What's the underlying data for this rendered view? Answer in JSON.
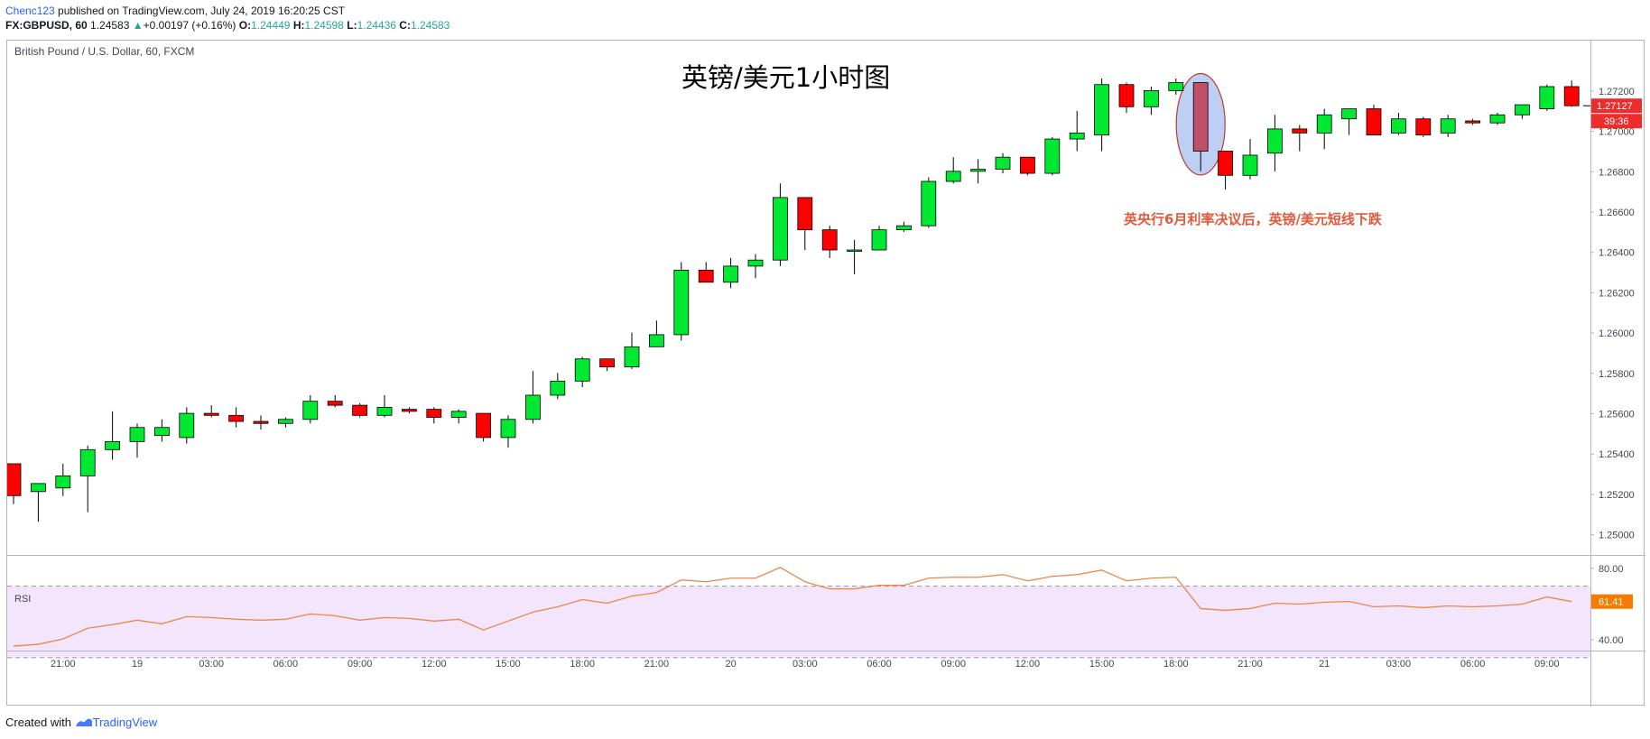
{
  "header": {
    "author": "Chenc123",
    "published": " published on TradingView.com, July 24, 2019 16:20:25 CST",
    "symbol": "FX:GBPUSD, 60",
    "last": "1.24583",
    "change_arrow": "▲",
    "change": "+0.00197 (+0.16%)",
    "o_label": "O:",
    "o_val": "1.24449",
    "h_label": "H:",
    "h_val": "1.24598",
    "l_label": "L:",
    "l_val": "1.24436",
    "c_label": "C:",
    "c_val": "1.24583"
  },
  "footer": {
    "created_with": "Created with",
    "brand": "TradingView"
  },
  "colors": {
    "up": "#00e832",
    "down": "#ff0000",
    "rsi_line": "#e8894a",
    "rsi_band": "#f3e5fb",
    "highlight": "#a7bfee",
    "annotation": "#e05a3b",
    "price_tag": "#ef2c2c",
    "rsi_tag": "#f57c00"
  },
  "chart_data": {
    "type": "candlestick",
    "instrument_label": "British Pound / U.S. Dollar, 60, FXCM",
    "title": "英镑/美元1小时图",
    "annotation": "英央行6月利率决议后，英镑/美元短线下跌",
    "price_axis": {
      "ylim": [
        1.249,
        1.2745
      ],
      "ticks": [
        "1.25000",
        "1.25200",
        "1.25400",
        "1.25600",
        "1.25800",
        "1.26000",
        "1.26200",
        "1.26400",
        "1.26600",
        "1.26800",
        "1.27000",
        "1.27200"
      ]
    },
    "last_price_tag": "1.27127",
    "countdown_tag": "39:36",
    "x_ticks": [
      {
        "i": 2,
        "label": "21:00"
      },
      {
        "i": 5,
        "label": "19"
      },
      {
        "i": 8,
        "label": "03:00"
      },
      {
        "i": 11,
        "label": "06:00"
      },
      {
        "i": 14,
        "label": "09:00"
      },
      {
        "i": 17,
        "label": "12:00"
      },
      {
        "i": 20,
        "label": "15:00"
      },
      {
        "i": 23,
        "label": "18:00"
      },
      {
        "i": 26,
        "label": "21:00"
      },
      {
        "i": 29,
        "label": "20"
      },
      {
        "i": 32,
        "label": "03:00"
      },
      {
        "i": 35,
        "label": "06:00"
      },
      {
        "i": 38,
        "label": "09:00"
      },
      {
        "i": 41,
        "label": "12:00"
      },
      {
        "i": 44,
        "label": "15:00"
      },
      {
        "i": 47,
        "label": "18:00"
      },
      {
        "i": 50,
        "label": "21:00"
      },
      {
        "i": 53,
        "label": "21"
      },
      {
        "i": 56,
        "label": "03:00"
      },
      {
        "i": 59,
        "label": "06:00"
      },
      {
        "i": 62,
        "label": "09:00"
      }
    ],
    "highlight_index": 48,
    "candles": [
      [
        1.25352,
        1.25352,
        1.25152,
        1.25194
      ],
      [
        1.25214,
        1.25254,
        1.25064,
        1.25254
      ],
      [
        1.25232,
        1.25352,
        1.25192,
        1.25292
      ],
      [
        1.25292,
        1.25442,
        1.25112,
        1.25422
      ],
      [
        1.25422,
        1.25612,
        1.25372,
        1.25462
      ],
      [
        1.25462,
        1.25552,
        1.25382,
        1.25532
      ],
      [
        1.25492,
        1.25572,
        1.25462,
        1.25532
      ],
      [
        1.25482,
        1.25632,
        1.25452,
        1.25602
      ],
      [
        1.25602,
        1.25642,
        1.25582,
        1.25592
      ],
      [
        1.25592,
        1.25632,
        1.25532,
        1.25562
      ],
      [
        1.25562,
        1.25592,
        1.25522,
        1.25552
      ],
      [
        1.25552,
        1.25582,
        1.25532,
        1.25572
      ],
      [
        1.25572,
        1.25692,
        1.25552,
        1.25662
      ],
      [
        1.25662,
        1.25692,
        1.25632,
        1.25642
      ],
      [
        1.25642,
        1.25652,
        1.25582,
        1.25592
      ],
      [
        1.25592,
        1.25692,
        1.25582,
        1.25632
      ],
      [
        1.25622,
        1.25632,
        1.25602,
        1.25612
      ],
      [
        1.25622,
        1.25632,
        1.25552,
        1.25582
      ],
      [
        1.25582,
        1.25622,
        1.25552,
        1.25612
      ],
      [
        1.25602,
        1.25602,
        1.25462,
        1.25482
      ],
      [
        1.25482,
        1.25592,
        1.25432,
        1.25572
      ],
      [
        1.25572,
        1.25812,
        1.25552,
        1.25692
      ],
      [
        1.25692,
        1.25802,
        1.25672,
        1.25762
      ],
      [
        1.25762,
        1.25882,
        1.25732,
        1.25872
      ],
      [
        1.25872,
        1.25872,
        1.25812,
        1.25832
      ],
      [
        1.25832,
        1.26002,
        1.25822,
        1.25932
      ],
      [
        1.25932,
        1.26062,
        1.25932,
        1.25992
      ],
      [
        1.25992,
        1.26352,
        1.25962,
        1.26312
      ],
      [
        1.26312,
        1.26352,
        1.26252,
        1.26252
      ],
      [
        1.26252,
        1.26372,
        1.26222,
        1.26332
      ],
      [
        1.26332,
        1.26392,
        1.26272,
        1.26362
      ],
      [
        1.26362,
        1.26742,
        1.26332,
        1.26672
      ],
      [
        1.26672,
        1.26672,
        1.26412,
        1.26512
      ],
      [
        1.26512,
        1.26532,
        1.26372,
        1.26412
      ],
      [
        1.26412,
        1.26462,
        1.26292,
        1.26412
      ],
      [
        1.26412,
        1.26532,
        1.26412,
        1.26512
      ],
      [
        1.26512,
        1.26552,
        1.26502,
        1.26532
      ],
      [
        1.26532,
        1.26772,
        1.26522,
        1.26752
      ],
      [
        1.26752,
        1.26872,
        1.26742,
        1.26802
      ],
      [
        1.26802,
        1.26862,
        1.26742,
        1.26812
      ],
      [
        1.26812,
        1.26892,
        1.26792,
        1.26872
      ],
      [
        1.26872,
        1.26872,
        1.26782,
        1.26792
      ],
      [
        1.26792,
        1.26972,
        1.26782,
        1.26962
      ],
      [
        1.26962,
        1.27102,
        1.26902,
        1.26992
      ],
      [
        1.26982,
        1.27262,
        1.26902,
        1.27232
      ],
      [
        1.27232,
        1.27242,
        1.27092,
        1.27122
      ],
      [
        1.27122,
        1.27222,
        1.27082,
        1.27202
      ],
      [
        1.27202,
        1.27262,
        1.27182,
        1.27242
      ],
      [
        1.27242,
        1.27242,
        1.26802,
        1.26902
      ],
      [
        1.26902,
        1.26902,
        1.26712,
        1.26782
      ],
      [
        1.26782,
        1.26962,
        1.26762,
        1.26882
      ],
      [
        1.26892,
        1.27082,
        1.26802,
        1.27012
      ],
      [
        1.27012,
        1.27032,
        1.26902,
        1.26992
      ],
      [
        1.26992,
        1.27112,
        1.26912,
        1.27082
      ],
      [
        1.27062,
        1.27112,
        1.26982,
        1.27112
      ],
      [
        1.27112,
        1.27132,
        1.26982,
        1.26982
      ],
      [
        1.26992,
        1.27092,
        1.26982,
        1.27062
      ],
      [
        1.27062,
        1.27072,
        1.26972,
        1.26982
      ],
      [
        1.26992,
        1.27082,
        1.26972,
        1.27062
      ],
      [
        1.27052,
        1.27062,
        1.27032,
        1.27042
      ],
      [
        1.27042,
        1.27092,
        1.27032,
        1.27082
      ],
      [
        1.27082,
        1.27132,
        1.27062,
        1.27132
      ],
      [
        1.27112,
        1.27232,
        1.27102,
        1.27222
      ],
      [
        1.27222,
        1.27252,
        1.27122,
        1.27127
      ]
    ],
    "rsi": {
      "label": "RSI",
      "ylim": [
        34,
        87
      ],
      "ticks": [
        "80.00",
        "40.00"
      ],
      "band": [
        70,
        30
      ],
      "last_value": "61.41",
      "values": [
        36.5,
        37.5,
        40.5,
        46.5,
        48.5,
        51,
        49,
        53,
        52.5,
        51.5,
        51,
        51.5,
        54.5,
        53.5,
        51,
        52.5,
        52,
        50.5,
        51.5,
        45.5,
        50.5,
        55.5,
        58.5,
        62.5,
        60.5,
        64.5,
        66.5,
        73.5,
        72.5,
        74.5,
        74.5,
        80.5,
        72.5,
        68.5,
        68.5,
        70.5,
        70.5,
        74.5,
        75,
        75,
        76.5,
        73,
        75.5,
        76.5,
        79,
        73,
        74.5,
        75,
        57.5,
        56.5,
        57.5,
        60.5,
        60,
        61,
        61.5,
        58.5,
        59,
        58,
        59,
        58.5,
        59,
        60,
        64,
        61.41
      ]
    }
  }
}
